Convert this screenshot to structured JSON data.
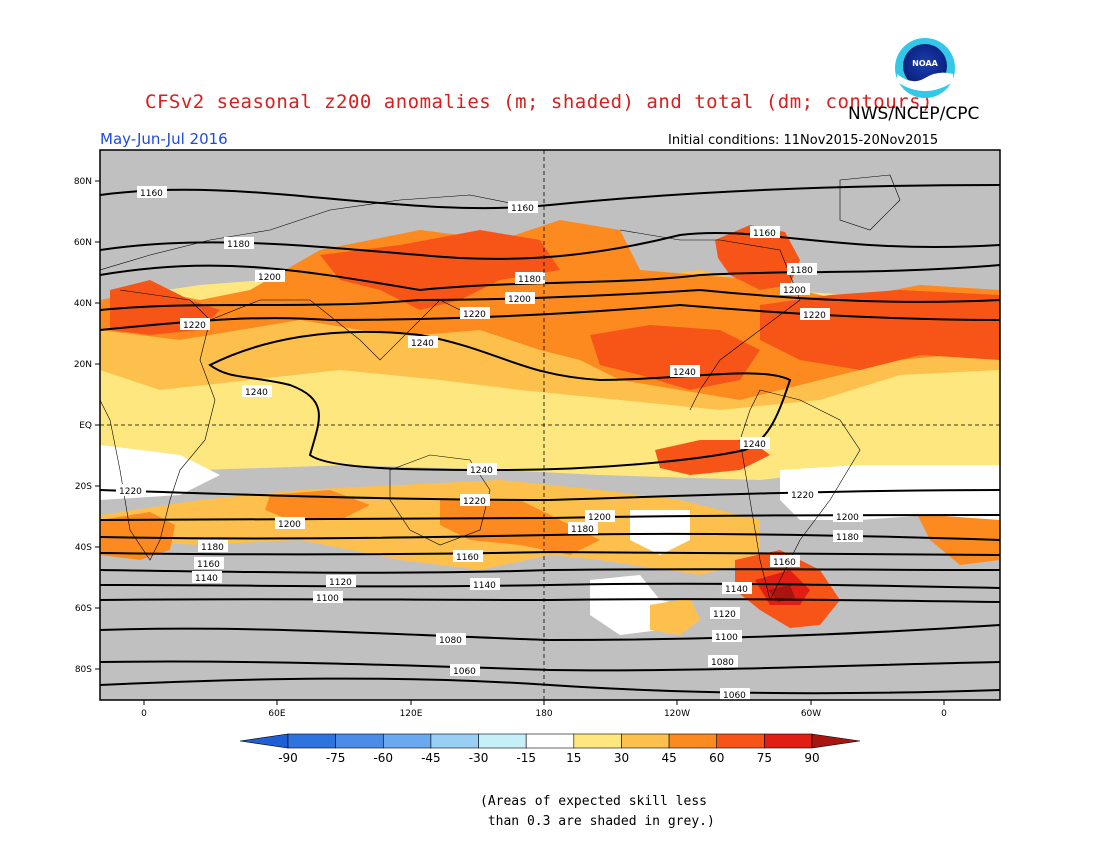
{
  "title": "CFSv2 seasonal z200 anomalies (m; shaded) and total (dm; contours)",
  "agency": "NWS/NCEP/CPC",
  "season": "May-Jun-Jul 2016",
  "initial_conditions": "Initial conditions: 11Nov2015-20Nov2015",
  "logo_text": "NOAA",
  "note_lines": [
    "(Areas of expected skill less",
    " than 0.3 are shaded in grey.)"
  ],
  "colors": {
    "grey": "#c0c0c0",
    "c15_30": "#ffe780",
    "c30_45": "#fdc04c",
    "c45_60": "#fc8a1f",
    "c60_75": "#f75518",
    "c75_90": "#e01e14",
    "c90": "#a8140f"
  },
  "map": {
    "lat_labels": [
      "80N",
      "60N",
      "40N",
      "20N",
      "EQ",
      "20S",
      "40S",
      "60S",
      "80S"
    ],
    "lon_labels": [
      "0",
      "60E",
      "120E",
      "180",
      "120W",
      "60W",
      "0"
    ]
  },
  "legend": {
    "thresholds": [
      "-90",
      "-75",
      "-60",
      "-45",
      "-30",
      "-15",
      "15",
      "30",
      "45",
      "60",
      "75",
      "90"
    ],
    "colors": [
      "#1e5fd6",
      "#2e74e0",
      "#4a8ce8",
      "#6aa8f0",
      "#99cff5",
      "#c6f0f8",
      "#ffffff",
      "#ffe780",
      "#fdc04c",
      "#fc8a1f",
      "#f75518",
      "#e01e14",
      "#a8140f"
    ]
  },
  "contours": [
    {
      "label": "1160",
      "text": "1160"
    },
    {
      "label": "1180",
      "text": "1180"
    },
    {
      "label": "1200",
      "text": "1200"
    },
    {
      "label": "1220",
      "text": "1220"
    },
    {
      "label": "1240",
      "text": "1240"
    },
    {
      "label": "1120",
      "text": "1120"
    },
    {
      "label": "1100",
      "text": "1100"
    },
    {
      "label": "1080",
      "text": "1080"
    },
    {
      "label": "1060",
      "text": "1060"
    },
    {
      "label": "1140",
      "text": "1140"
    }
  ]
}
